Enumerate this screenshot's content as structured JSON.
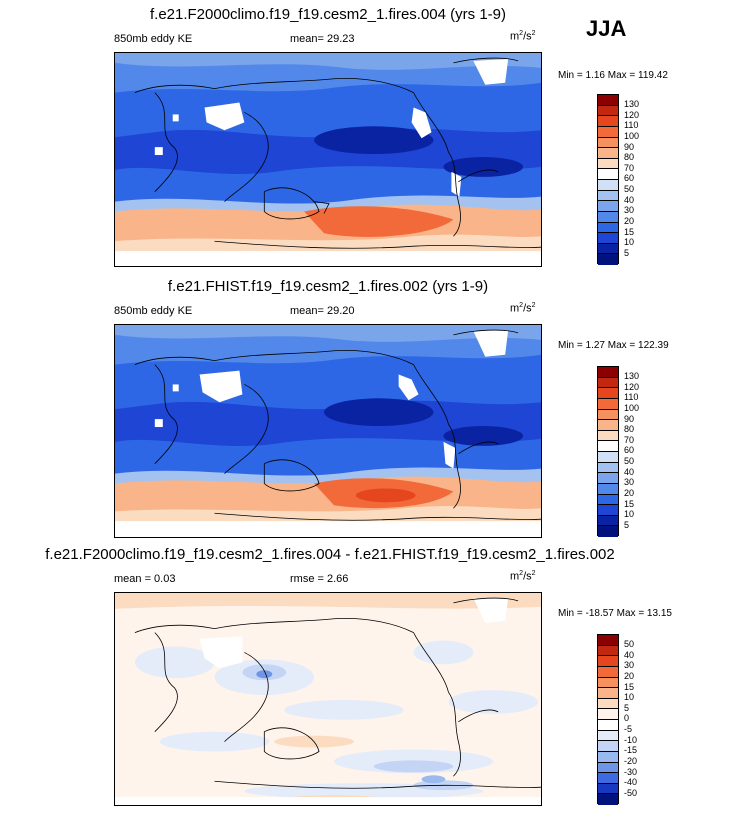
{
  "season": "JJA",
  "panels": [
    {
      "title": "f.e21.F2000climo.f19_f19.cesm2_1.fires.004 (yrs 1-9)",
      "variable": "850mb eddy KE",
      "stat1": "mean=  29.23",
      "units_base": "m",
      "units_exp1": "2",
      "units_mid": "/s",
      "units_exp2": "2",
      "minmax": "Min =  1.16 Max = 119.42",
      "levels": [
        "130",
        "120",
        "110",
        "100",
        "90",
        "80",
        "70",
        "60",
        "50",
        "40",
        "30",
        "20",
        "15",
        "10",
        "5"
      ]
    },
    {
      "title": "f.e21.FHIST.f19_f19.cesm2_1.fires.002 (yrs 1-9)",
      "variable": "850mb eddy KE",
      "stat1": "mean=  29.20",
      "units_base": "m",
      "units_exp1": "2",
      "units_mid": "/s",
      "units_exp2": "2",
      "minmax": "Min =  1.27 Max = 122.39",
      "levels": [
        "130",
        "120",
        "110",
        "100",
        "90",
        "80",
        "70",
        "60",
        "50",
        "40",
        "30",
        "20",
        "15",
        "10",
        "5"
      ]
    },
    {
      "title": "f.e21.F2000climo.f19_f19.cesm2_1.fires.004 - f.e21.FHIST.f19_f19.cesm2_1.fires.002",
      "stat1": "mean =   0.03",
      "stat2": "rmse =   2.66",
      "units_base": "m",
      "units_exp1": "2",
      "units_mid": "/s",
      "units_exp2": "2",
      "minmax": "Min = -18.57 Max =  13.15",
      "levels": [
        "50",
        "40",
        "30",
        "20",
        "15",
        "10",
        "5",
        "0",
        "-5",
        "-10",
        "-15",
        "-20",
        "-30",
        "-40",
        "-50"
      ]
    }
  ],
  "colors": {
    "abs_scale": [
      "#8b0000",
      "#c1280f",
      "#e6461e",
      "#f26a3a",
      "#f6905f",
      "#f9b48a",
      "#fcdcc0",
      "#ffffff",
      "#d0e1f7",
      "#a3c2ef",
      "#7aa5ea",
      "#5288ea",
      "#2d67e6",
      "#1f45d4",
      "#0a23a3",
      "#00137d"
    ],
    "diff_scale": [
      "#8b0000",
      "#c1280f",
      "#e6461e",
      "#f26a3a",
      "#f6905f",
      "#f9b48a",
      "#fcdcc0",
      "#fff4ec",
      "#ffffff",
      "#e4ecfa",
      "#c3d4f4",
      "#9ab9ee",
      "#6f96e6",
      "#3d6ae0",
      "#1938c2",
      "#00137d"
    ]
  }
}
